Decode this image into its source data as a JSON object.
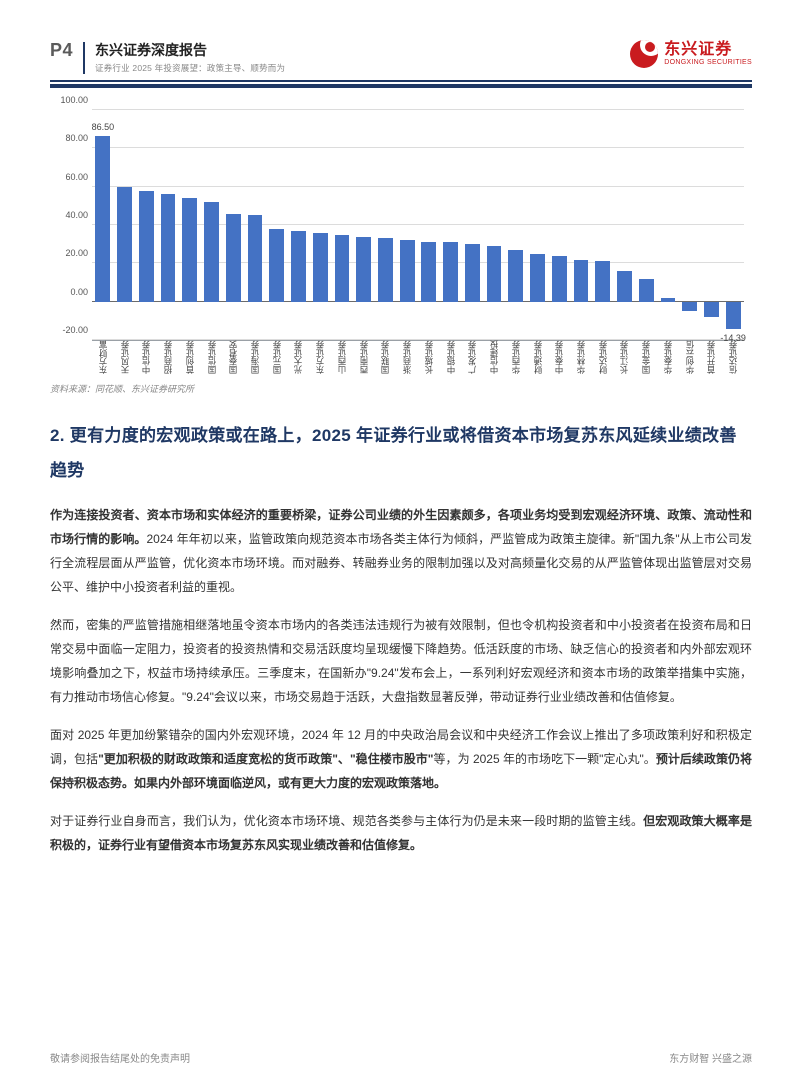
{
  "header": {
    "page_number": "P4",
    "title": "东兴证券深度报告",
    "subtitle": "证券行业 2025 年投资展望：政策主导、顺势而为",
    "logo_cn": "东兴证券",
    "logo_en": "DONGXING SECURITIES",
    "logo_color": "#c91b1f",
    "rule_color": "#1f3864"
  },
  "chart": {
    "type": "bar",
    "ylim": [
      -20,
      100
    ],
    "ytick_step": 20,
    "yticks": [
      -20,
      0,
      20,
      40,
      60,
      80,
      100
    ],
    "ytick_labels": [
      "-20.00",
      "0.00",
      "20.00",
      "40.00",
      "60.00",
      "80.00",
      "100.00"
    ],
    "bar_color": "#4472c4",
    "grid_color": "#dcdcdc",
    "axis_color": "#9aa0a6",
    "label_fontsize": 9,
    "tick_fontsize": 8.5,
    "categories": [
      "东方财富",
      "天风证券",
      "中信证券",
      "招商证券",
      "首创证券",
      "国信证券",
      "国泰君安",
      "国海证券",
      "国元证券",
      "光大证券",
      "东方证券",
      "山西证券",
      "西南证券",
      "国联证券",
      "浙商证券",
      "长城证券",
      "中银证券",
      "广发证券",
      "中信建投",
      "华西证券",
      "财通证券",
      "中泰证券",
      "华林证券",
      "财达证券",
      "长江证券",
      "国金证券",
      "华泰证券",
      "华创云信",
      "首开证券",
      "信达证券"
    ],
    "values": [
      86.5,
      60,
      58,
      56,
      54,
      52,
      46,
      45,
      38,
      37,
      36,
      35,
      34,
      33,
      32,
      31,
      31,
      30,
      29,
      27,
      25,
      24,
      22,
      21,
      16,
      12,
      2,
      -5,
      -8,
      -14.39
    ],
    "value_labels_shown": [
      {
        "index": 0,
        "text": "86.50",
        "pos": "top"
      },
      {
        "index": 29,
        "text": "-14.39",
        "pos": "bottom"
      }
    ],
    "source": "资料来源：同花顺、东兴证券研究所"
  },
  "section": {
    "heading": "2. 更有力度的宏观政策或在路上，2025 年证券行业或将借资本市场复苏东风延续业绩改善趋势",
    "heading_color": "#1f3864",
    "paragraphs": [
      {
        "html": "<strong>作为连接投资者、资本市场和实体经济的重要桥梁，证券公司业绩的外生因素颇多，各项业务均受到宏观经济环境、政策、流动性和市场行情的影响。</strong>2024 年年初以来，监管政策向规范资本市场各类主体行为倾斜，严监管成为政策主旋律。新\"国九条\"从上市公司发行全流程层面从严监管，优化资本市场环境。而对融券、转融券业务的限制加强以及对高频量化交易的从严监管体现出监管层对交易公平、维护中小投资者利益的重视。"
      },
      {
        "html": "然而，密集的严监管措施相继落地虽令资本市场内的各类违法违规行为被有效限制，但也令机构投资者和中小投资者在投资布局和日常交易中面临一定阻力，投资者的投资热情和交易活跃度均呈现缓慢下降趋势。低活跃度的市场、缺乏信心的投资者和内外部宏观环境影响叠加之下，权益市场持续承压。三季度末，在国新办\"9.24\"发布会上，一系列利好宏观经济和资本市场的政策举措集中实施，有力推动市场信心修复。\"9.24\"会议以来，市场交易趋于活跃，大盘指数显著反弹，带动证券行业业绩改善和估值修复。"
      },
      {
        "html": "面对 2025 年更加纷繁错杂的国内外宏观环境，2024 年 12 月的中央政治局会议和中央经济工作会议上推出了多项政策利好和积极定调，包括<strong>\"更加积极的财政政策和适度宽松的货币政策\"、\"稳住楼市股市\"</strong>等，为 2025 年的市场吃下一颗\"定心丸\"。<strong>预计后续政策仍将保持积极态势。如果内外部环境面临逆风，或有更大力度的宏观政策落地。</strong>"
      },
      {
        "html": "对于证券行业自身而言，我们认为，优化资本市场环境、规范各类参与主体行为仍是未来一段时期的监管主线。<strong>但宏观政策大概率是积极的，证券行业有望借资本市场复苏东风实现业绩改善和估值修复。</strong>"
      }
    ]
  },
  "footer": {
    "left": "敬请参阅报告结尾处的免责声明",
    "right": "东方财智 兴盛之源"
  }
}
